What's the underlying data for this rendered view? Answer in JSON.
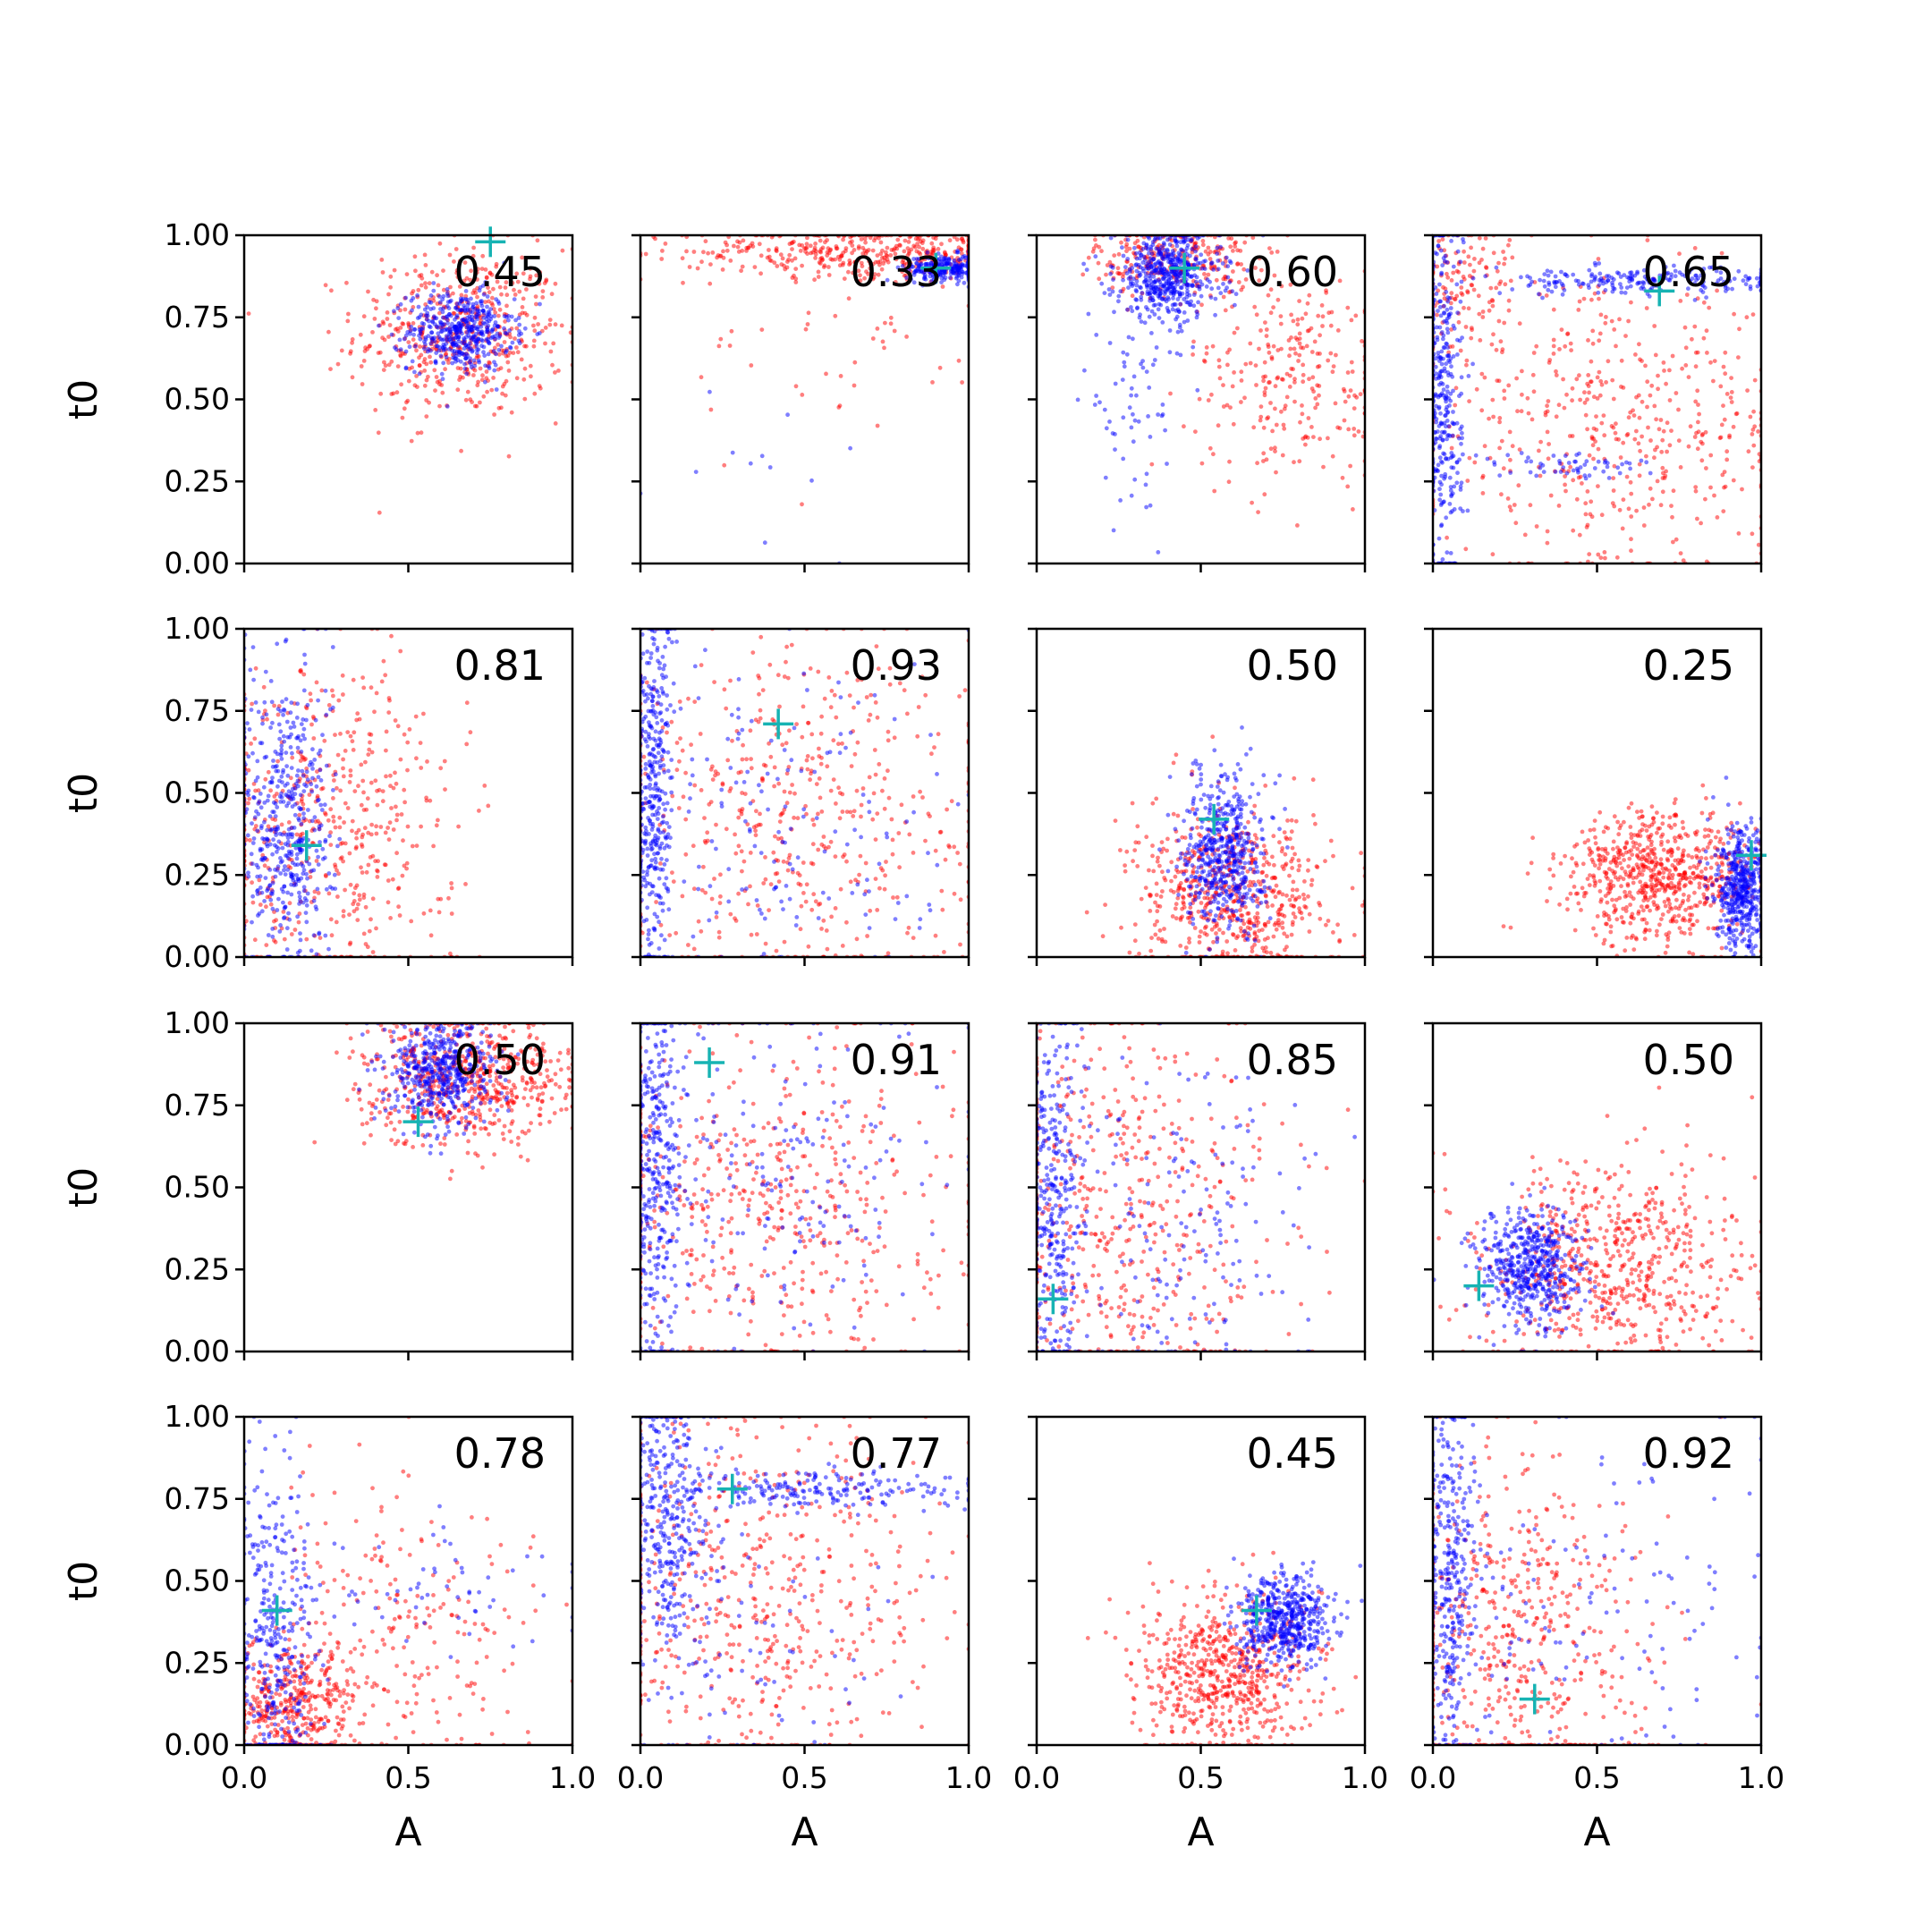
{
  "figure": {
    "type": "scatter",
    "grid_layout": "4x4",
    "shared_x_axis": true,
    "shared_y_axis": true,
    "xlabel": "A",
    "ylabel": "t0",
    "xlim": [
      0.0,
      1.0
    ],
    "ylim": [
      0.0,
      1.0
    ],
    "xtick_labels": [
      "0.0",
      "0.5",
      "1.0"
    ],
    "ytick_labels": [
      "0.00",
      "0.25",
      "0.50",
      "0.75",
      "1.00"
    ],
    "colors": {
      "series_a": "#0000ff",
      "series_b": "#ff0000",
      "marker": "#17b3b3"
    },
    "marker_style": "plus",
    "annotation_placement": "top-right"
  },
  "chart_data": [
    {
      "type": "scatter",
      "row": 1,
      "col": 1,
      "annotation": "0.45",
      "marker": {
        "x": 0.75,
        "y": 0.98
      },
      "series": [
        {
          "color": "#ff0000",
          "n": 520,
          "center": [
            0.66,
            0.7
          ],
          "spread": [
            0.16,
            0.13
          ],
          "xlim": [
            0.0,
            1.0
          ],
          "ylim": [
            0.0,
            1.0
          ]
        },
        {
          "color": "#0000ff",
          "n": 460,
          "center": [
            0.66,
            0.71
          ],
          "spread": [
            0.08,
            0.06
          ],
          "xlim": [
            0.0,
            1.0
          ],
          "ylim": [
            0.0,
            1.0
          ]
        }
      ]
    },
    {
      "type": "scatter",
      "row": 1,
      "col": 2,
      "annotation": "0.33",
      "marker": {
        "x": 0.9,
        "y": 0.9
      },
      "series": [
        {
          "color": "#ff0000",
          "n": 420,
          "center": [
            0.7,
            0.95
          ],
          "spread": [
            0.28,
            0.04
          ],
          "xlim": [
            0.0,
            1.0
          ],
          "ylim": [
            0.0,
            1.0
          ]
        },
        {
          "color": "#ff0000",
          "n": 45,
          "center": [
            0.6,
            0.65
          ],
          "spread": [
            0.25,
            0.2
          ],
          "xlim": [
            0.0,
            1.0
          ],
          "ylim": [
            0.0,
            1.0
          ]
        },
        {
          "color": "#0000ff",
          "n": 260,
          "center": [
            0.93,
            0.9
          ],
          "spread": [
            0.06,
            0.02
          ],
          "xlim": [
            0.0,
            1.0
          ],
          "ylim": [
            0.0,
            1.0
          ]
        },
        {
          "color": "#0000ff",
          "n": 12,
          "center": [
            0.4,
            0.25
          ],
          "spread": [
            0.25,
            0.15
          ],
          "xlim": [
            0.0,
            1.0
          ],
          "ylim": [
            0.0,
            1.0
          ]
        }
      ]
    },
    {
      "type": "scatter",
      "row": 1,
      "col": 3,
      "annotation": "0.60",
      "marker": {
        "x": 0.45,
        "y": 0.9
      },
      "series": [
        {
          "color": "#ff0000",
          "n": 260,
          "center": [
            0.42,
            0.93
          ],
          "spread": [
            0.12,
            0.06
          ],
          "xlim": [
            0.0,
            1.0
          ],
          "ylim": [
            0.0,
            1.0
          ]
        },
        {
          "color": "#ff0000",
          "n": 260,
          "center": [
            0.78,
            0.58
          ],
          "spread": [
            0.16,
            0.16
          ],
          "xlim": [
            0.0,
            1.0
          ],
          "ylim": [
            0.0,
            1.0
          ]
        },
        {
          "color": "#0000ff",
          "n": 520,
          "center": [
            0.4,
            0.88
          ],
          "spread": [
            0.08,
            0.07
          ],
          "xlim": [
            0.0,
            1.0
          ],
          "ylim": [
            0.0,
            1.0
          ]
        },
        {
          "color": "#0000ff",
          "n": 70,
          "center": [
            0.3,
            0.5
          ],
          "spread": [
            0.08,
            0.15
          ],
          "xlim": [
            0.0,
            1.0
          ],
          "ylim": [
            0.0,
            1.0
          ]
        }
      ]
    },
    {
      "type": "scatter",
      "row": 1,
      "col": 4,
      "annotation": "0.65",
      "marker": {
        "x": 0.69,
        "y": 0.83
      },
      "series": [
        {
          "color": "#ff0000",
          "n": 480,
          "center": [
            0.55,
            0.4
          ],
          "spread": [
            0.28,
            0.22
          ],
          "xlim": [
            0.0,
            1.0
          ],
          "ylim": [
            0.0,
            1.0
          ]
        },
        {
          "color": "#ff0000",
          "n": 120,
          "center": [
            0.1,
            0.85
          ],
          "spread": [
            0.08,
            0.1
          ],
          "xlim": [
            0.0,
            1.0
          ],
          "ylim": [
            0.0,
            1.0
          ]
        },
        {
          "color": "#0000ff",
          "n": 360,
          "center": [
            0.03,
            0.5
          ],
          "spread": [
            0.03,
            0.3
          ],
          "xlim": [
            0.0,
            1.0
          ],
          "ylim": [
            0.0,
            1.0
          ]
        },
        {
          "color": "#0000ff",
          "n": 220,
          "center": [
            0.65,
            0.86
          ],
          "spread": [
            0.25,
            0.02
          ],
          "xlim": [
            0.0,
            1.0
          ],
          "ylim": [
            0.0,
            1.0
          ]
        },
        {
          "color": "#0000ff",
          "n": 60,
          "center": [
            0.4,
            0.3
          ],
          "spread": [
            0.15,
            0.02
          ],
          "xlim": [
            0.0,
            1.0
          ],
          "ylim": [
            0.0,
            1.0
          ]
        }
      ]
    },
    {
      "type": "scatter",
      "row": 2,
      "col": 1,
      "annotation": "0.81",
      "marker": {
        "x": 0.19,
        "y": 0.34
      },
      "series": [
        {
          "color": "#ff0000",
          "n": 520,
          "center": [
            0.25,
            0.4
          ],
          "spread": [
            0.2,
            0.25
          ],
          "xlim": [
            0.0,
            1.0
          ],
          "ylim": [
            0.0,
            1.0
          ]
        },
        {
          "color": "#0000ff",
          "n": 480,
          "center": [
            0.13,
            0.4
          ],
          "spread": [
            0.07,
            0.25
          ],
          "xlim": [
            0.0,
            1.0
          ],
          "ylim": [
            0.0,
            1.0
          ]
        }
      ]
    },
    {
      "type": "scatter",
      "row": 2,
      "col": 2,
      "annotation": "0.93",
      "marker": {
        "x": 0.42,
        "y": 0.71
      },
      "series": [
        {
          "color": "#ff0000",
          "n": 500,
          "center": [
            0.45,
            0.45
          ],
          "spread": [
            0.3,
            0.28
          ],
          "xlim": [
            0.0,
            1.0
          ],
          "ylim": [
            0.0,
            1.0
          ]
        },
        {
          "color": "#0000ff",
          "n": 380,
          "center": [
            0.04,
            0.5
          ],
          "spread": [
            0.03,
            0.3
          ],
          "xlim": [
            0.0,
            1.0
          ],
          "ylim": [
            0.0,
            1.0
          ]
        },
        {
          "color": "#0000ff",
          "n": 160,
          "center": [
            0.45,
            0.4
          ],
          "spread": [
            0.28,
            0.28
          ],
          "xlim": [
            0.0,
            1.0
          ],
          "ylim": [
            0.0,
            1.0
          ]
        }
      ]
    },
    {
      "type": "scatter",
      "row": 2,
      "col": 3,
      "annotation": "0.50",
      "marker": {
        "x": 0.54,
        "y": 0.42
      },
      "series": [
        {
          "color": "#ff0000",
          "n": 620,
          "center": [
            0.6,
            0.18
          ],
          "spread": [
            0.15,
            0.13
          ],
          "xlim": [
            0.0,
            1.0
          ],
          "ylim": [
            0.0,
            1.0
          ]
        },
        {
          "color": "#0000ff",
          "n": 520,
          "center": [
            0.57,
            0.32
          ],
          "spread": [
            0.06,
            0.12
          ],
          "xlim": [
            0.0,
            1.0
          ],
          "ylim": [
            0.0,
            1.0
          ]
        }
      ]
    },
    {
      "type": "scatter",
      "row": 2,
      "col": 4,
      "annotation": "0.25",
      "marker": {
        "x": 0.97,
        "y": 0.31
      },
      "series": [
        {
          "color": "#ff0000",
          "n": 700,
          "center": [
            0.7,
            0.25
          ],
          "spread": [
            0.15,
            0.1
          ],
          "xlim": [
            0.0,
            1.0
          ],
          "ylim": [
            0.0,
            1.0
          ]
        },
        {
          "color": "#0000ff",
          "n": 480,
          "center": [
            0.94,
            0.2
          ],
          "spread": [
            0.04,
            0.09
          ],
          "xlim": [
            0.0,
            1.0
          ],
          "ylim": [
            0.0,
            1.0
          ]
        }
      ]
    },
    {
      "type": "scatter",
      "row": 3,
      "col": 1,
      "annotation": "0.50",
      "marker": {
        "x": 0.53,
        "y": 0.7
      },
      "series": [
        {
          "color": "#ff0000",
          "n": 620,
          "center": [
            0.68,
            0.83
          ],
          "spread": [
            0.16,
            0.1
          ],
          "xlim": [
            0.0,
            1.0
          ],
          "ylim": [
            0.0,
            1.0
          ]
        },
        {
          "color": "#0000ff",
          "n": 480,
          "center": [
            0.6,
            0.85
          ],
          "spread": [
            0.08,
            0.08
          ],
          "xlim": [
            0.0,
            1.0
          ],
          "ylim": [
            0.0,
            1.0
          ]
        }
      ]
    },
    {
      "type": "scatter",
      "row": 3,
      "col": 2,
      "annotation": "0.91",
      "marker": {
        "x": 0.21,
        "y": 0.88
      },
      "series": [
        {
          "color": "#ff0000",
          "n": 520,
          "center": [
            0.4,
            0.45
          ],
          "spread": [
            0.3,
            0.28
          ],
          "xlim": [
            0.0,
            1.0
          ],
          "ylim": [
            0.0,
            1.0
          ]
        },
        {
          "color": "#0000ff",
          "n": 340,
          "center": [
            0.05,
            0.55
          ],
          "spread": [
            0.04,
            0.3
          ],
          "xlim": [
            0.0,
            1.0
          ],
          "ylim": [
            0.0,
            1.0
          ]
        },
        {
          "color": "#0000ff",
          "n": 200,
          "center": [
            0.4,
            0.55
          ],
          "spread": [
            0.28,
            0.28
          ],
          "xlim": [
            0.0,
            1.0
          ],
          "ylim": [
            0.0,
            1.0
          ]
        }
      ]
    },
    {
      "type": "scatter",
      "row": 3,
      "col": 3,
      "annotation": "0.85",
      "marker": {
        "x": 0.05,
        "y": 0.16
      },
      "series": [
        {
          "color": "#ff0000",
          "n": 520,
          "center": [
            0.25,
            0.4
          ],
          "spread": [
            0.25,
            0.3
          ],
          "xlim": [
            0.0,
            1.0
          ],
          "ylim": [
            0.0,
            1.0
          ]
        },
        {
          "color": "#0000ff",
          "n": 300,
          "center": [
            0.05,
            0.45
          ],
          "spread": [
            0.04,
            0.3
          ],
          "xlim": [
            0.0,
            1.0
          ],
          "ylim": [
            0.0,
            1.0
          ]
        },
        {
          "color": "#0000ff",
          "n": 200,
          "center": [
            0.4,
            0.4
          ],
          "spread": [
            0.25,
            0.25
          ],
          "xlim": [
            0.0,
            1.0
          ],
          "ylim": [
            0.0,
            1.0
          ]
        }
      ]
    },
    {
      "type": "scatter",
      "row": 3,
      "col": 4,
      "annotation": "0.50",
      "marker": {
        "x": 0.14,
        "y": 0.2
      },
      "series": [
        {
          "color": "#ff0000",
          "n": 640,
          "center": [
            0.55,
            0.25
          ],
          "spread": [
            0.2,
            0.17
          ],
          "xlim": [
            0.0,
            1.0
          ],
          "ylim": [
            0.0,
            1.0
          ]
        },
        {
          "color": "#0000ff",
          "n": 520,
          "center": [
            0.3,
            0.25
          ],
          "spread": [
            0.08,
            0.09
          ],
          "xlim": [
            0.0,
            1.0
          ],
          "ylim": [
            0.0,
            1.0
          ]
        }
      ]
    },
    {
      "type": "scatter",
      "row": 4,
      "col": 1,
      "annotation": "0.78",
      "marker": {
        "x": 0.1,
        "y": 0.41
      },
      "series": [
        {
          "color": "#ff0000",
          "n": 400,
          "center": [
            0.15,
            0.12
          ],
          "spread": [
            0.1,
            0.1
          ],
          "xlim": [
            0.0,
            1.0
          ],
          "ylim": [
            0.0,
            1.0
          ]
        },
        {
          "color": "#ff0000",
          "n": 220,
          "center": [
            0.5,
            0.35
          ],
          "spread": [
            0.22,
            0.22
          ],
          "xlim": [
            0.0,
            1.0
          ],
          "ylim": [
            0.0,
            1.0
          ]
        },
        {
          "color": "#0000ff",
          "n": 360,
          "center": [
            0.1,
            0.3
          ],
          "spread": [
            0.06,
            0.28
          ],
          "xlim": [
            0.0,
            1.0
          ],
          "ylim": [
            0.0,
            1.0
          ]
        },
        {
          "color": "#0000ff",
          "n": 60,
          "center": [
            0.6,
            0.5
          ],
          "spread": [
            0.25,
            0.1
          ],
          "xlim": [
            0.0,
            1.0
          ],
          "ylim": [
            0.0,
            1.0
          ]
        }
      ]
    },
    {
      "type": "scatter",
      "row": 4,
      "col": 2,
      "annotation": "0.77",
      "marker": {
        "x": 0.28,
        "y": 0.78
      },
      "series": [
        {
          "color": "#ff0000",
          "n": 520,
          "center": [
            0.35,
            0.45
          ],
          "spread": [
            0.28,
            0.28
          ],
          "xlim": [
            0.0,
            1.0
          ],
          "ylim": [
            0.0,
            1.0
          ]
        },
        {
          "color": "#0000ff",
          "n": 340,
          "center": [
            0.08,
            0.7
          ],
          "spread": [
            0.06,
            0.22
          ],
          "xlim": [
            0.0,
            1.0
          ],
          "ylim": [
            0.0,
            1.0
          ]
        },
        {
          "color": "#0000ff",
          "n": 200,
          "center": [
            0.55,
            0.78
          ],
          "spread": [
            0.25,
            0.03
          ],
          "xlim": [
            0.0,
            1.0
          ],
          "ylim": [
            0.0,
            1.0
          ]
        },
        {
          "color": "#0000ff",
          "n": 80,
          "center": [
            0.3,
            0.3
          ],
          "spread": [
            0.25,
            0.2
          ],
          "xlim": [
            0.0,
            1.0
          ],
          "ylim": [
            0.0,
            1.0
          ]
        }
      ]
    },
    {
      "type": "scatter",
      "row": 4,
      "col": 3,
      "annotation": "0.45",
      "marker": {
        "x": 0.67,
        "y": 0.41
      },
      "series": [
        {
          "color": "#ff0000",
          "n": 620,
          "center": [
            0.58,
            0.22
          ],
          "spread": [
            0.14,
            0.12
          ],
          "xlim": [
            0.0,
            1.0
          ],
          "ylim": [
            0.0,
            1.0
          ]
        },
        {
          "color": "#0000ff",
          "n": 520,
          "center": [
            0.75,
            0.38
          ],
          "spread": [
            0.07,
            0.07
          ],
          "xlim": [
            0.0,
            1.0
          ],
          "ylim": [
            0.0,
            1.0
          ]
        }
      ]
    },
    {
      "type": "scatter",
      "row": 4,
      "col": 4,
      "annotation": "0.92",
      "marker": {
        "x": 0.31,
        "y": 0.14
      },
      "series": [
        {
          "color": "#ff0000",
          "n": 520,
          "center": [
            0.25,
            0.3
          ],
          "spread": [
            0.2,
            0.28
          ],
          "xlim": [
            0.0,
            1.0
          ],
          "ylim": [
            0.0,
            1.0
          ]
        },
        {
          "color": "#0000ff",
          "n": 340,
          "center": [
            0.05,
            0.55
          ],
          "spread": [
            0.04,
            0.3
          ],
          "xlim": [
            0.0,
            1.0
          ],
          "ylim": [
            0.0,
            1.0
          ]
        },
        {
          "color": "#0000ff",
          "n": 140,
          "center": [
            0.45,
            0.4
          ],
          "spread": [
            0.3,
            0.28
          ],
          "xlim": [
            0.0,
            1.0
          ],
          "ylim": [
            0.0,
            1.0
          ]
        }
      ]
    }
  ]
}
